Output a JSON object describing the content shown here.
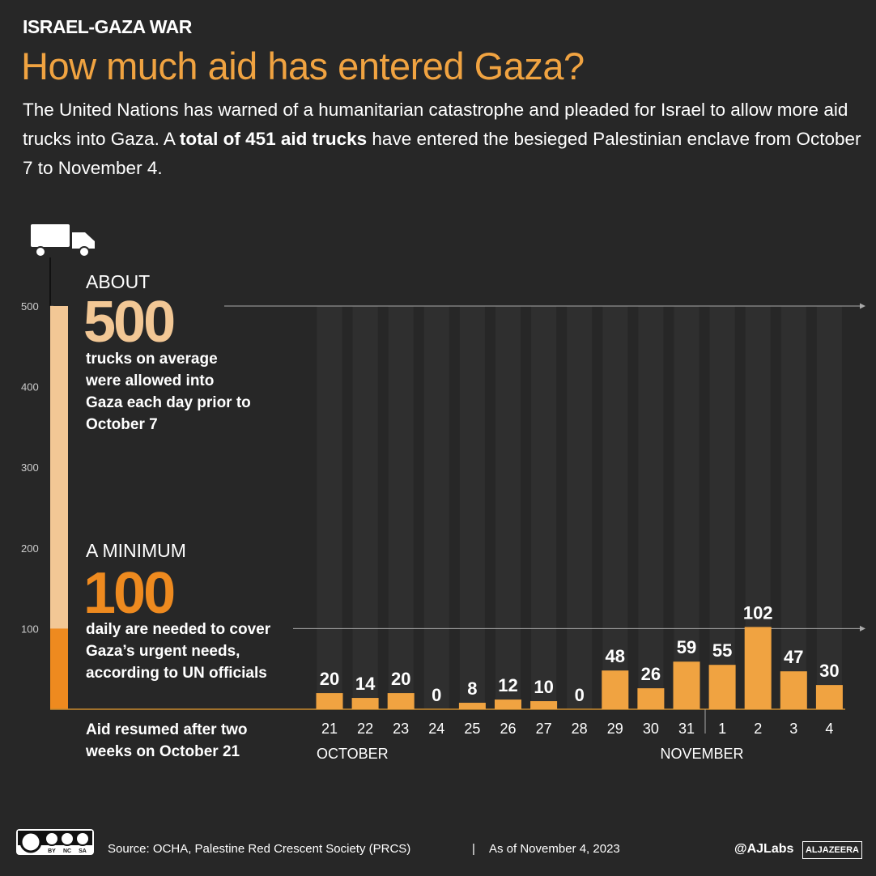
{
  "chart_data": {
    "type": "bar",
    "kicker": "ISRAEL-GAZA WAR",
    "title": "How much aid has entered Gaza?",
    "subtitle": [
      "The United Nations has warned of a humanitarian catastrophe and pleaded for Israel to allow more aid trucks into Gaza. A ",
      "total of 451 aid trucks",
      " have entered the besieged Palestinian enclave from October 7 to November 4."
    ],
    "categories": [
      "21",
      "22",
      "23",
      "24",
      "25",
      "26",
      "27",
      "28",
      "29",
      "30",
      "31",
      "1",
      "2",
      "3",
      "4"
    ],
    "month_labels": [
      "OCTOBER",
      "NOVEMBER"
    ],
    "values": [
      20,
      14,
      20,
      0,
      8,
      12,
      10,
      0,
      48,
      26,
      59,
      55,
      102,
      47,
      30
    ],
    "color": "#f0a341",
    "ylim": [
      0,
      500
    ],
    "yticks": [
      100,
      200,
      300,
      400,
      500
    ],
    "reference_lines": [
      {
        "lead": "ABOUT",
        "value": 500,
        "note": "trucks on average were allowed into Gaza each day prior to October 7",
        "color": "#f2c795"
      },
      {
        "lead": "A MINIMUM",
        "value": 100,
        "note": "daily are needed to cover Gaza’s urgent needs, according to UN officials",
        "color": "#ee8a1f"
      }
    ],
    "annotation": "Aid resumed after two weeks on October 21",
    "source": "Source:  OCHA, Palestine Red Crescent Society (PRCS)",
    "date_note": "As of November 4, 2023",
    "license": [
      "BY",
      "NC",
      "SA"
    ],
    "credit": "@AJLabs",
    "logo": "ALJAZEERA"
  }
}
